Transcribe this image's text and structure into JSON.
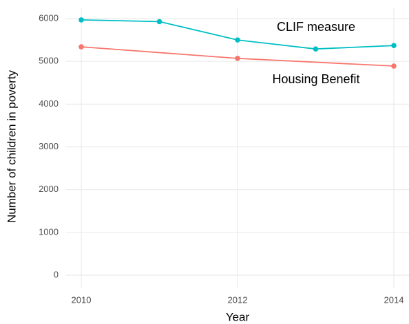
{
  "chart_data": {
    "type": "line",
    "xlabel": "Year",
    "ylabel": "Number of children in poverty",
    "series": [
      {
        "name": "CLIF measure",
        "color": "#00BFC4",
        "x": [
          2010,
          2011,
          2012,
          2013,
          2014
        ],
        "values": [
          5970,
          5930,
          5500,
          5290,
          5370
        ]
      },
      {
        "name": "Housing Benefit",
        "color": "#F8766D",
        "x": [
          2010,
          2012,
          2014
        ],
        "values": [
          5340,
          5070,
          4890
        ]
      }
    ],
    "xlim": [
      2009.8,
      2014.2
    ],
    "xticks": [
      2010,
      2012,
      2014
    ],
    "ylim": [
      -298,
      6258
    ],
    "yticks": [
      0,
      1000,
      2000,
      3000,
      4000,
      5000,
      6000
    ],
    "grid": true,
    "legend": "direct-labels"
  }
}
